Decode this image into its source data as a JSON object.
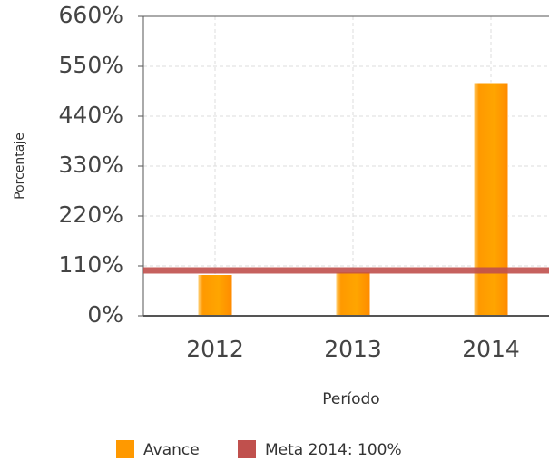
{
  "chart_data": {
    "type": "bar",
    "categories": [
      "2012",
      "2013",
      "2014"
    ],
    "series": [
      {
        "name": "Avance",
        "color": "#ff9900",
        "values": [
          91,
          97,
          514
        ]
      }
    ],
    "reference_line": {
      "name": "Meta 2014: 100%",
      "value": 100,
      "color": "#c0504d"
    },
    "x_label": "Período",
    "y_label": "Porcentaje",
    "ylim": [
      0,
      660
    ],
    "yticks": [
      {
        "value": 0,
        "label": "0%"
      },
      {
        "value": 110,
        "label": "110%"
      },
      {
        "value": 220,
        "label": "220%"
      },
      {
        "value": 330,
        "label": "330%"
      },
      {
        "value": 440,
        "label": "440%"
      },
      {
        "value": 550,
        "label": "550%"
      },
      {
        "value": 660,
        "label": "660%"
      }
    ],
    "grid": true
  }
}
